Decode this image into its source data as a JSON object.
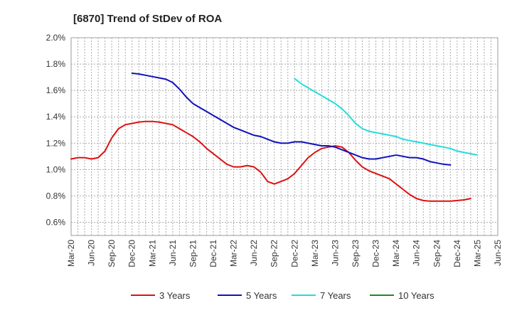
{
  "chart_data": {
    "type": "line",
    "title": "[6870]  Trend of StDev of ROA",
    "xlabel": "",
    "ylabel": "",
    "ylim": [
      0.5,
      2.0
    ],
    "yticks": [
      0.6,
      0.8,
      1.0,
      1.2,
      1.4,
      1.6,
      1.8,
      2.0
    ],
    "ytick_labels": [
      "0.6%",
      "0.8%",
      "1.0%",
      "1.2%",
      "1.4%",
      "1.6%",
      "1.8%",
      "2.0%"
    ],
    "x_tick_labels": [
      "Mar-20",
      "Jun-20",
      "Sep-20",
      "Dec-20",
      "Mar-21",
      "Jun-21",
      "Sep-21",
      "Dec-21",
      "Mar-22",
      "Jun-22",
      "Sep-22",
      "Dec-22",
      "Mar-23",
      "Jun-23",
      "Sep-23",
      "Dec-23",
      "Mar-24",
      "Jun-24",
      "Sep-24",
      "Dec-24",
      "Mar-25",
      "Jun-25"
    ],
    "grid": true,
    "legend_position": "bottom",
    "series": [
      {
        "name": "3 Years",
        "color": "#dd1111",
        "start_index": 0,
        "values": [
          1.08,
          1.09,
          1.09,
          1.08,
          1.09,
          1.14,
          1.24,
          1.31,
          1.34,
          1.35,
          1.36,
          1.365,
          1.365,
          1.36,
          1.35,
          1.34,
          1.31,
          1.28,
          1.25,
          1.21,
          1.16,
          1.12,
          1.08,
          1.04,
          1.02,
          1.02,
          1.03,
          1.02,
          0.98,
          0.91,
          0.89,
          0.91,
          0.93,
          0.97,
          1.03,
          1.09,
          1.13,
          1.16,
          1.17,
          1.18,
          1.17,
          1.13,
          1.07,
          1.02,
          0.99,
          0.97,
          0.95,
          0.93,
          0.89,
          0.85,
          0.81,
          0.78,
          0.765,
          0.76,
          0.76,
          0.76,
          0.76,
          0.765,
          0.77,
          0.78
        ]
      },
      {
        "name": "5 Years",
        "color": "#1111bb",
        "start_index": 9,
        "values": [
          1.73,
          1.725,
          1.715,
          1.705,
          1.695,
          1.685,
          1.66,
          1.61,
          1.55,
          1.5,
          1.47,
          1.44,
          1.41,
          1.38,
          1.35,
          1.32,
          1.3,
          1.28,
          1.26,
          1.25,
          1.23,
          1.21,
          1.2,
          1.2,
          1.21,
          1.21,
          1.2,
          1.19,
          1.18,
          1.18,
          1.17,
          1.15,
          1.13,
          1.11,
          1.09,
          1.08,
          1.08,
          1.09,
          1.1,
          1.11,
          1.1,
          1.09,
          1.09,
          1.08,
          1.06,
          1.05,
          1.04,
          1.035
        ]
      },
      {
        "name": "7 Years",
        "color": "#22dddd",
        "start_index": 33,
        "values": [
          1.69,
          1.65,
          1.62,
          1.59,
          1.56,
          1.53,
          1.5,
          1.46,
          1.41,
          1.35,
          1.31,
          1.29,
          1.28,
          1.27,
          1.26,
          1.25,
          1.23,
          1.22,
          1.21,
          1.2,
          1.19,
          1.18,
          1.17,
          1.16,
          1.14,
          1.13,
          1.12,
          1.11
        ]
      },
      {
        "name": "10 Years",
        "color": "#228822",
        "start_index": 0,
        "values": []
      }
    ]
  }
}
